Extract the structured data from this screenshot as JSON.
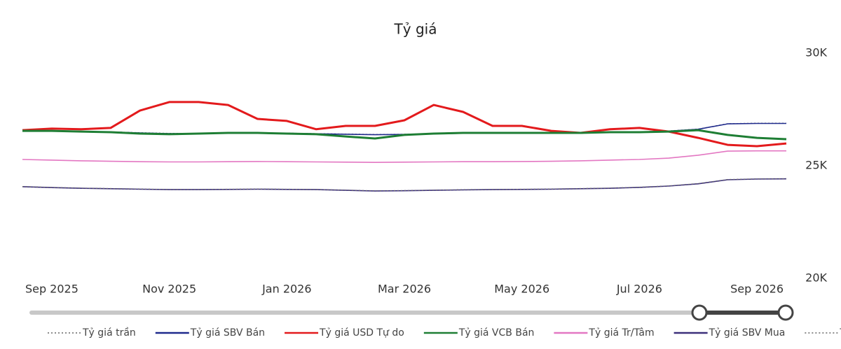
{
  "chart_data": {
    "type": "line",
    "title": "Tỷ giá",
    "categories": [
      null,
      "Sep 2025",
      null,
      null,
      null,
      "Nov 2025",
      null,
      null,
      null,
      "Jan 2026",
      null,
      null,
      null,
      "Mar 2026",
      null,
      null,
      null,
      "May 2026",
      null,
      null,
      null,
      "Jul 2026",
      null,
      null,
      null,
      "Sep 2026",
      null
    ],
    "ylim": [
      20000,
      30000
    ],
    "yticks": [
      {
        "value": 20000,
        "label": "20K"
      },
      {
        "value": 25000,
        "label": "25K"
      },
      {
        "value": 30000,
        "label": "30K"
      }
    ],
    "series": [
      {
        "name": "Tỷ giá trần",
        "color": "#666666",
        "style": "dotted",
        "values": [
          26570,
          26550,
          26530,
          26510,
          26470,
          26440,
          26440,
          26460,
          26470,
          26450,
          26430,
          26410,
          26390,
          26400,
          26430,
          26450,
          26460,
          26460,
          26470,
          26480,
          26490,
          26510,
          26550,
          26630,
          26870,
          26890,
          26890
        ]
      },
      {
        "name": "Tỷ giá SBV Bán",
        "color": "#1f2a8c",
        "style": "solid",
        "values": [
          26560,
          26540,
          26520,
          26500,
          26460,
          26430,
          26430,
          26450,
          26460,
          26440,
          26420,
          26400,
          26380,
          26390,
          26420,
          26440,
          26450,
          26450,
          26460,
          26470,
          26480,
          26500,
          26540,
          26620,
          26860,
          26880,
          26880
        ]
      },
      {
        "name": "Tỷ giá USD Tự do",
        "color": "#e31a1c",
        "style": "solid",
        "values": [
          26580,
          26650,
          26620,
          26680,
          27450,
          27830,
          27830,
          27700,
          27080,
          26990,
          26620,
          26770,
          26770,
          27020,
          27700,
          27390,
          26770,
          26770,
          26550,
          26460,
          26620,
          26680,
          26520,
          26240,
          25930,
          25870,
          25990
        ]
      },
      {
        "name": "Tỷ giá VCB Bán",
        "color": "#1e7e34",
        "style": "solid",
        "values": [
          26550,
          26550,
          26520,
          26490,
          26430,
          26400,
          26430,
          26460,
          26460,
          26430,
          26400,
          26300,
          26210,
          26370,
          26430,
          26460,
          26460,
          26460,
          26460,
          26460,
          26490,
          26490,
          26520,
          26580,
          26370,
          26240,
          26180
        ]
      },
      {
        "name": "Tỷ giá Tr/Tâm",
        "color": "#e377c2",
        "style": "solid",
        "values": [
          25280,
          25250,
          25220,
          25200,
          25180,
          25170,
          25170,
          25180,
          25190,
          25180,
          25170,
          25160,
          25150,
          25160,
          25170,
          25180,
          25180,
          25190,
          25200,
          25220,
          25250,
          25280,
          25340,
          25470,
          25650,
          25660,
          25660
        ]
      },
      {
        "name": "Tỷ giá SBV Mua",
        "color": "#3c2f7a",
        "style": "solid",
        "values": [
          24070,
          24030,
          24000,
          23980,
          23960,
          23940,
          23940,
          23950,
          23960,
          23950,
          23940,
          23910,
          23880,
          23890,
          23910,
          23930,
          23940,
          23950,
          23960,
          23980,
          24000,
          24040,
          24100,
          24200,
          24380,
          24410,
          24420
        ]
      },
      {
        "name": "Tỷ giá sàn",
        "color": "#666666",
        "style": "dotted",
        "values": [
          24080,
          24040,
          24010,
          23990,
          23970,
          23950,
          23950,
          23960,
          23970,
          23960,
          23950,
          23920,
          23890,
          23900,
          23920,
          23940,
          23950,
          23960,
          23970,
          23990,
          24010,
          24050,
          24110,
          24210,
          24390,
          24420,
          24430
        ]
      }
    ]
  }
}
